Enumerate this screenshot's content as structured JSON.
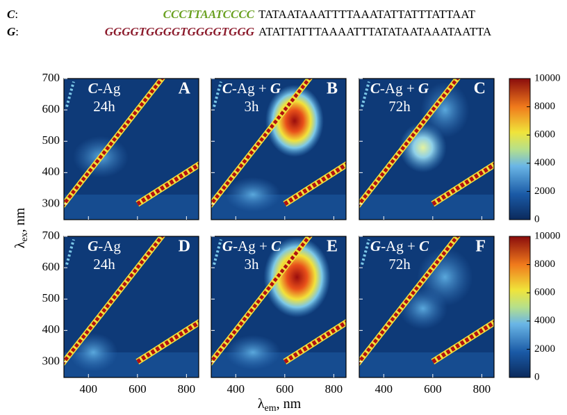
{
  "sequences": [
    {
      "name": "C",
      "sep": ":",
      "colored": "CCCTTAATCCCC",
      "color": "#6aa121",
      "rest": "TATAATAAATTTTAAATATTATTTATTAAT"
    },
    {
      "name": "G",
      "sep": ":",
      "colored": "GGGGTGGGGTGGGGTGGG",
      "color": "#8b1a2b",
      "rest": "ATATTATTTAAAATTTATATAATAAATAATTA"
    }
  ],
  "chart_data": {
    "type": "heatmap",
    "xlabel": {
      "symbol": "λ",
      "sub": "em",
      "unit": ", nm"
    },
    "ylabel": {
      "symbol": "λ",
      "sub": "ex",
      "unit": ", nm"
    },
    "xlim": [
      300,
      850
    ],
    "xticks": [
      400,
      600,
      800
    ],
    "ylim": [
      250,
      700
    ],
    "yticks": [
      300,
      400,
      500,
      600,
      700
    ],
    "clim": [
      0,
      10000
    ],
    "cticks": [
      0,
      2000,
      4000,
      6000,
      8000,
      10000
    ],
    "panels": [
      {
        "letter": "A",
        "strand": "C",
        "mid": "-Ag",
        "time": "24h"
      },
      {
        "letter": "B",
        "strand": "C",
        "mid": "-Ag + ",
        "partner": "G",
        "time": "3h"
      },
      {
        "letter": "C",
        "strand": "C",
        "mid": "-Ag + ",
        "partner": "G",
        "time": "72h"
      },
      {
        "letter": "D",
        "strand": "G",
        "mid": "-Ag",
        "time": "24h"
      },
      {
        "letter": "E",
        "strand": "G",
        "mid": "-Ag + ",
        "partner": "C",
        "time": "3h"
      },
      {
        "letter": "F",
        "strand": "G",
        "mid": "-Ag + ",
        "partner": "C",
        "time": "72h"
      }
    ]
  }
}
